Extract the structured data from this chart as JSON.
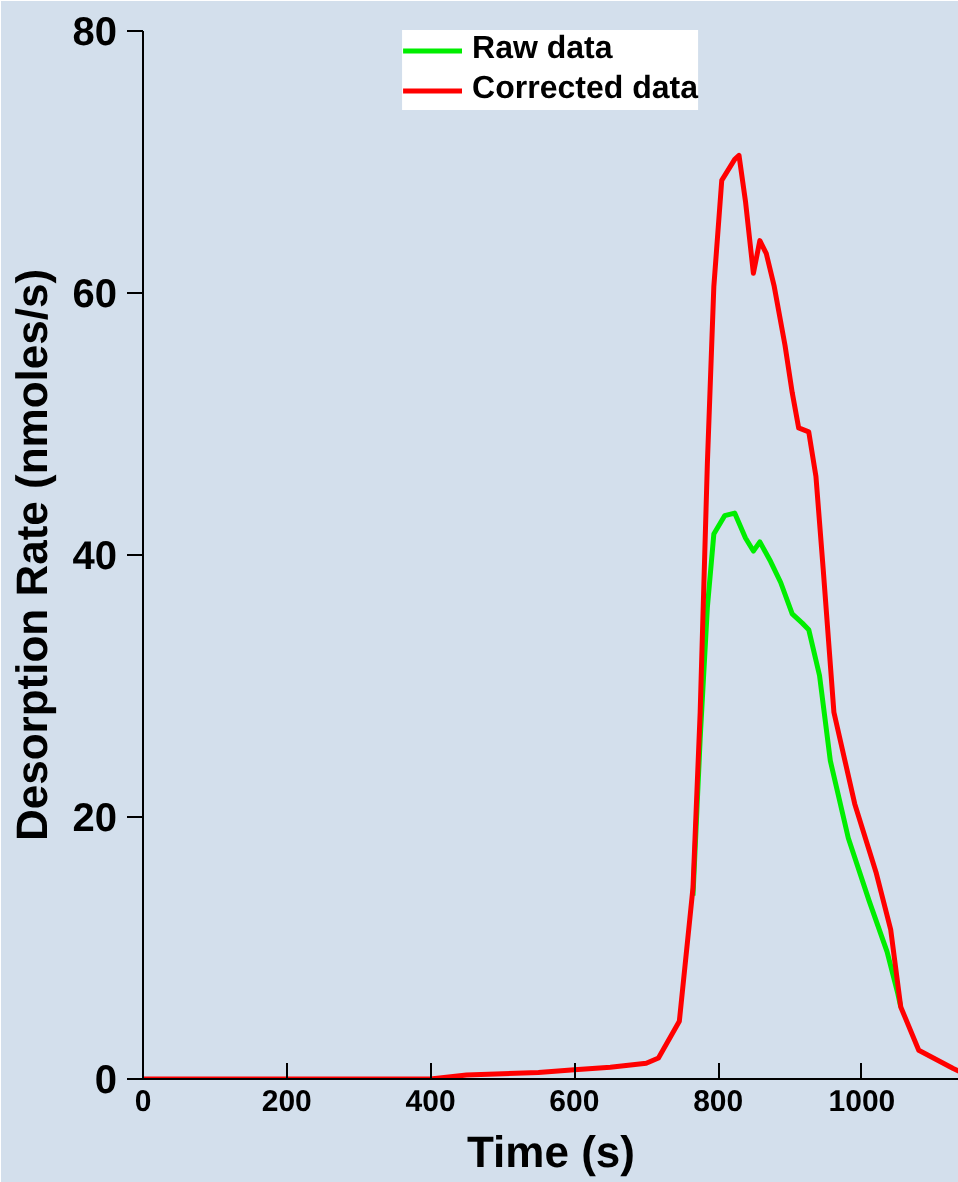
{
  "chart_data": {
    "type": "line",
    "xlabel": "Time (s)",
    "ylabel": "Desorption Rate (nmoles/s)",
    "xlim": [
      0,
      1135
    ],
    "ylim": [
      0,
      80
    ],
    "xticks": [
      0,
      200,
      400,
      600,
      800,
      1000
    ],
    "yticks": [
      0,
      20,
      40,
      60,
      80
    ],
    "grid": false,
    "legend": "top",
    "line_style": "solid",
    "marker": "none",
    "series": [
      {
        "name": "Raw data",
        "color": "#00ee00",
        "x": [
          765,
          775,
          785,
          794,
          809,
          823,
          838,
          849,
          858,
          873,
          887,
          903,
          917,
          926,
          941,
          956,
          981,
          1010,
          1035,
          1050,
          1054
        ],
        "values": [
          14,
          26,
          36,
          41.6,
          43,
          43.2,
          41.3,
          40.3,
          41,
          39.5,
          37.9,
          35.5,
          34.8,
          34.3,
          30.8,
          24.3,
          18.4,
          13.6,
          9.7,
          6.5,
          5.5
        ]
      },
      {
        "name": "Corrected data",
        "color": "#ff0000",
        "x": [
          0,
          200,
          400,
          450,
          550,
          600,
          650,
          700,
          717,
          746,
          765,
          775,
          785,
          794,
          805,
          823,
          829,
          838,
          849,
          858,
          867,
          878,
          893,
          903,
          912,
          926,
          936,
          946,
          961,
          990,
          1020,
          1040,
          1054,
          1079,
          1127,
          1135
        ],
        "values": [
          0,
          0,
          0,
          0.3,
          0.5,
          0.7,
          0.9,
          1.2,
          1.6,
          4.4,
          14.6,
          28,
          47,
          60.5,
          68.6,
          70.2,
          70.5,
          67,
          61.5,
          64,
          63,
          60.5,
          56,
          52.4,
          49.7,
          49.4,
          46,
          39,
          28,
          21,
          15.7,
          11.4,
          5.5,
          2.2,
          0.8,
          0.6
        ]
      }
    ]
  }
}
